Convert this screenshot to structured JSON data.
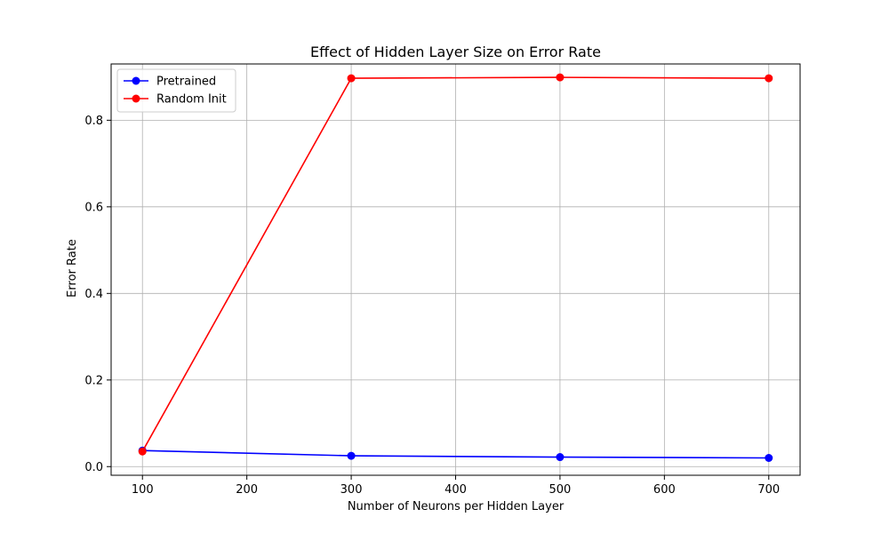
{
  "chart_data": {
    "type": "line",
    "title": "Effect of Hidden Layer Size on Error Rate",
    "xlabel": "Number of Neurons per Hidden Layer",
    "ylabel": "Error Rate",
    "x": [
      100,
      300,
      500,
      700
    ],
    "xlim": [
      70,
      730
    ],
    "ylim": [
      -0.02,
      0.93
    ],
    "xticks": [
      100,
      200,
      300,
      400,
      500,
      600,
      700
    ],
    "yticks": [
      0.0,
      0.2,
      0.4,
      0.6,
      0.8
    ],
    "xtick_labels": [
      "100",
      "200",
      "300",
      "400",
      "500",
      "600",
      "700"
    ],
    "ytick_labels": [
      "0.0",
      "0.2",
      "0.4",
      "0.6",
      "0.8"
    ],
    "grid": true,
    "legend_position": "top-left",
    "series": [
      {
        "name": "Pretrained",
        "color": "#0000ff",
        "values": [
          0.037,
          0.025,
          0.022,
          0.02
        ]
      },
      {
        "name": "Random Init",
        "color": "#ff0000",
        "values": [
          0.035,
          0.897,
          0.899,
          0.897
        ]
      }
    ]
  }
}
